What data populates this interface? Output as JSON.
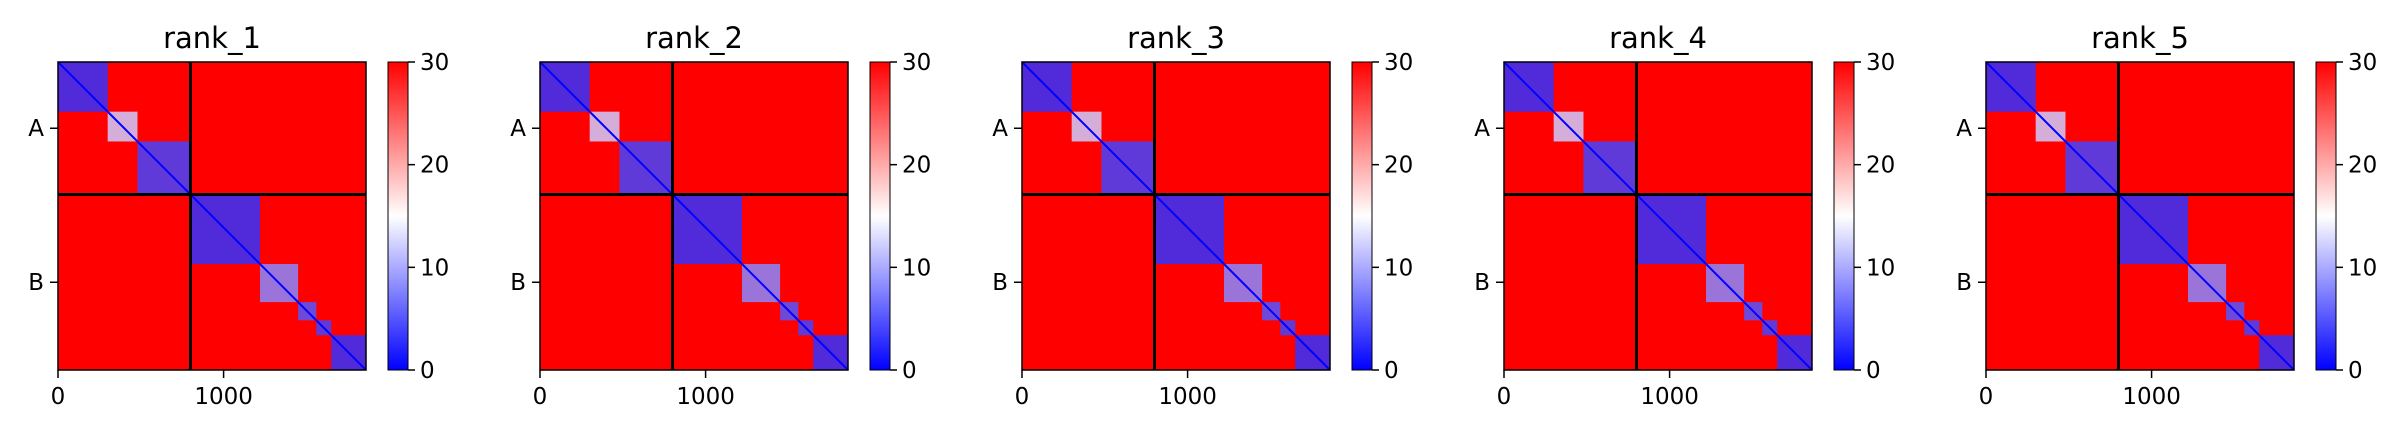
{
  "chart_data": [
    {
      "type": "heatmap",
      "title": "rank_1",
      "x_ticks": [
        0,
        1000
      ],
      "x_range": [
        0,
        1860
      ],
      "y_ticks": [
        {
          "label": "A",
          "value": 400
        },
        {
          "label": "B",
          "value": 1330
        }
      ],
      "chain_boundary": 800,
      "colorbar": {
        "range": [
          0,
          30
        ],
        "ticks": [
          0,
          10,
          20,
          30
        ],
        "colors": [
          "#0000ff",
          "#ffffff",
          "#ff0000"
        ]
      },
      "blocks": [
        [
          0,
          300,
          3
        ],
        [
          300,
          480,
          12
        ],
        [
          480,
          800,
          4
        ],
        [
          800,
          1220,
          3
        ],
        [
          1220,
          1450,
          8
        ],
        [
          1450,
          1560,
          5
        ],
        [
          1560,
          1650,
          4
        ],
        [
          1650,
          1860,
          3
        ]
      ]
    },
    {
      "type": "heatmap",
      "title": "rank_2",
      "x_ticks": [
        0,
        1000
      ],
      "x_range": [
        0,
        1860
      ],
      "y_ticks": [
        {
          "label": "A",
          "value": 400
        },
        {
          "label": "B",
          "value": 1330
        }
      ],
      "chain_boundary": 800,
      "colorbar": {
        "range": [
          0,
          30
        ],
        "ticks": [
          0,
          10,
          20,
          30
        ],
        "colors": [
          "#0000ff",
          "#ffffff",
          "#ff0000"
        ]
      },
      "blocks": [
        [
          0,
          300,
          3
        ],
        [
          300,
          480,
          12
        ],
        [
          480,
          800,
          4
        ],
        [
          800,
          1220,
          3
        ],
        [
          1220,
          1450,
          8
        ],
        [
          1450,
          1560,
          5
        ],
        [
          1560,
          1650,
          4
        ],
        [
          1650,
          1860,
          3
        ]
      ]
    },
    {
      "type": "heatmap",
      "title": "rank_3",
      "x_ticks": [
        0,
        1000
      ],
      "x_range": [
        0,
        1860
      ],
      "y_ticks": [
        {
          "label": "A",
          "value": 400
        },
        {
          "label": "B",
          "value": 1330
        }
      ],
      "chain_boundary": 800,
      "colorbar": {
        "range": [
          0,
          30
        ],
        "ticks": [
          0,
          10,
          20,
          30
        ],
        "colors": [
          "#0000ff",
          "#ffffff",
          "#ff0000"
        ]
      },
      "blocks": [
        [
          0,
          300,
          3
        ],
        [
          300,
          480,
          12
        ],
        [
          480,
          800,
          4
        ],
        [
          800,
          1220,
          3
        ],
        [
          1220,
          1450,
          8
        ],
        [
          1450,
          1560,
          5
        ],
        [
          1560,
          1650,
          4
        ],
        [
          1650,
          1860,
          3
        ]
      ]
    },
    {
      "type": "heatmap",
      "title": "rank_4",
      "x_ticks": [
        0,
        1000
      ],
      "x_range": [
        0,
        1860
      ],
      "y_ticks": [
        {
          "label": "A",
          "value": 400
        },
        {
          "label": "B",
          "value": 1330
        }
      ],
      "chain_boundary": 800,
      "colorbar": {
        "range": [
          0,
          30
        ],
        "ticks": [
          0,
          10,
          20,
          30
        ],
        "colors": [
          "#0000ff",
          "#ffffff",
          "#ff0000"
        ]
      },
      "blocks": [
        [
          0,
          300,
          3
        ],
        [
          300,
          480,
          12
        ],
        [
          480,
          800,
          4
        ],
        [
          800,
          1220,
          3
        ],
        [
          1220,
          1450,
          8
        ],
        [
          1450,
          1560,
          5
        ],
        [
          1560,
          1650,
          4
        ],
        [
          1650,
          1860,
          3
        ]
      ]
    },
    {
      "type": "heatmap",
      "title": "rank_5",
      "x_ticks": [
        0,
        1000
      ],
      "x_range": [
        0,
        1860
      ],
      "y_ticks": [
        {
          "label": "A",
          "value": 400
        },
        {
          "label": "B",
          "value": 1330
        }
      ],
      "chain_boundary": 800,
      "colorbar": {
        "range": [
          0,
          30
        ],
        "ticks": [
          0,
          10,
          20,
          30
        ],
        "colors": [
          "#0000ff",
          "#ffffff",
          "#ff0000"
        ]
      },
      "blocks": [
        [
          0,
          300,
          3
        ],
        [
          300,
          480,
          12
        ],
        [
          480,
          800,
          4
        ],
        [
          800,
          1220,
          3
        ],
        [
          1220,
          1450,
          8
        ],
        [
          1450,
          1560,
          5
        ],
        [
          1560,
          1650,
          4
        ],
        [
          1650,
          1860,
          3
        ]
      ]
    }
  ]
}
